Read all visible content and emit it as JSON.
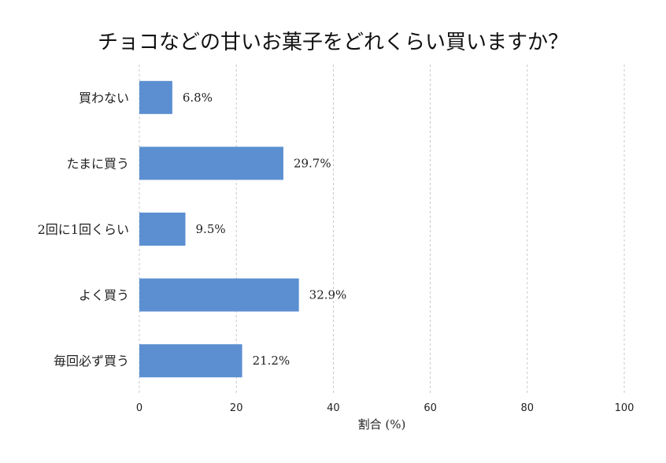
{
  "chart_data": {
    "type": "bar",
    "orientation": "horizontal",
    "title": "チョコなどの甘いお菓子をどれくらい買いますか？",
    "xlabel": "割合 (%)",
    "ylabel": "",
    "categories": [
      "買わない",
      "たまに買う",
      "2回に1回くらい",
      "よく買う",
      "毎回必ず買う"
    ],
    "values": [
      6.8,
      29.7,
      9.5,
      32.9,
      21.2
    ],
    "value_labels": [
      "6.8%",
      "29.7%",
      "9.5%",
      "32.9%",
      "21.2%"
    ],
    "xlim": [
      0,
      100
    ],
    "xticks": [
      0,
      20,
      40,
      60,
      80,
      100
    ],
    "grid": "vertical dashed",
    "bar_color": "#5b8fd1"
  }
}
